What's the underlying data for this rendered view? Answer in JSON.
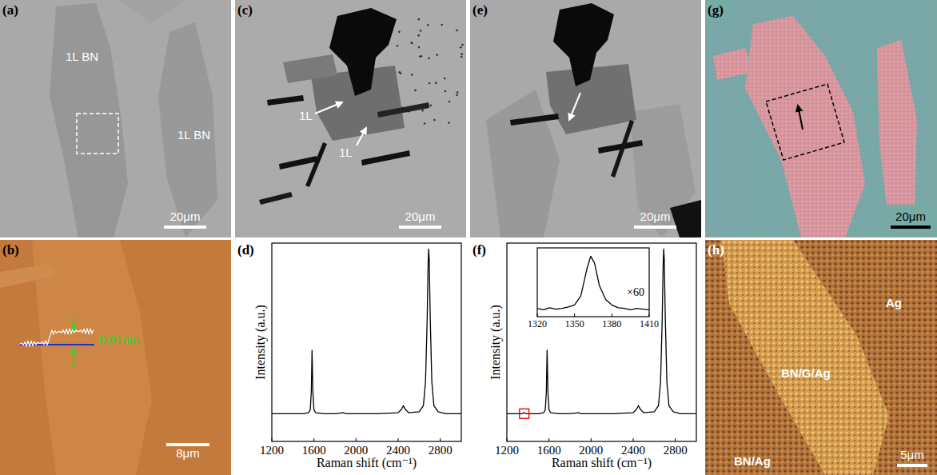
{
  "panel_labels": [
    "(a)",
    "(b)",
    "(c)",
    "(d)",
    "(e)",
    "(f)",
    "(g)",
    "(h)"
  ],
  "images": {
    "a": {
      "labels": [
        "1L BN",
        "1L BN"
      ],
      "scale_bar": "20μm"
    },
    "b": {
      "height": "0.61nm",
      "scale_bar": "8μm"
    },
    "c": {
      "labels": [
        "1L",
        "1L"
      ],
      "scale_bar": "20μm"
    },
    "e": {
      "scale_bar": "20μm"
    },
    "g": {
      "scale_bar": "20μm"
    },
    "h": {
      "labels": [
        "Ag",
        "BN/G/Ag",
        "BN/Ag"
      ],
      "scale_bar": "5μm"
    }
  },
  "chart_data": [
    {
      "type": "line",
      "xlabel": "Raman shift (cm⁻¹)",
      "ylabel": "Intensity (a.u.)",
      "xlim": [
        1200,
        3000
      ],
      "xticks": [
        1200,
        1600,
        2000,
        2400,
        2800
      ],
      "ylim": [
        0,
        1
      ],
      "tick_labels": "x",
      "x": [
        1200,
        1300,
        1400,
        1500,
        1550,
        1565,
        1575,
        1582,
        1590,
        1600,
        1615,
        1700,
        1800,
        1880,
        1900,
        2000,
        2200,
        2400,
        2430,
        2450,
        2470,
        2500,
        2600,
        2640,
        2660,
        2675,
        2685,
        2690,
        2695,
        2705,
        2720,
        2740,
        2780,
        2850,
        2950,
        3000
      ],
      "series": [
        {
          "color": "#000000",
          "values": [
            0.14,
            0.14,
            0.14,
            0.14,
            0.145,
            0.16,
            0.25,
            0.46,
            0.25,
            0.16,
            0.145,
            0.14,
            0.14,
            0.145,
            0.14,
            0.14,
            0.14,
            0.145,
            0.16,
            0.18,
            0.16,
            0.145,
            0.15,
            0.18,
            0.3,
            0.6,
            0.9,
            0.97,
            0.92,
            0.62,
            0.3,
            0.18,
            0.15,
            0.14,
            0.14,
            0.14
          ]
        }
      ]
    },
    {
      "type": "line",
      "xlabel": "Raman shift (cm⁻¹)",
      "ylabel": "Intensity (a.u.)",
      "xlim": [
        1200,
        3000
      ],
      "xticks": [
        1200,
        1600,
        2000,
        2400,
        2800
      ],
      "ylim": [
        0,
        1
      ],
      "tick_labels": "x",
      "x": [
        1200,
        1300,
        1350,
        1365,
        1380,
        1400,
        1500,
        1550,
        1565,
        1575,
        1582,
        1590,
        1600,
        1615,
        1700,
        1800,
        1880,
        1900,
        2000,
        2200,
        2400,
        2430,
        2450,
        2470,
        2500,
        2600,
        2640,
        2660,
        2675,
        2685,
        2690,
        2695,
        2705,
        2720,
        2740,
        2780,
        2850,
        2950,
        3000
      ],
      "series": [
        {
          "color": "#000000",
          "values": [
            0.14,
            0.14,
            0.14,
            0.145,
            0.14,
            0.14,
            0.14,
            0.145,
            0.16,
            0.25,
            0.46,
            0.25,
            0.16,
            0.145,
            0.14,
            0.14,
            0.145,
            0.14,
            0.14,
            0.14,
            0.145,
            0.16,
            0.18,
            0.16,
            0.145,
            0.15,
            0.18,
            0.3,
            0.6,
            0.9,
            0.97,
            0.92,
            0.62,
            0.3,
            0.18,
            0.15,
            0.14,
            0.14,
            0.14
          ]
        }
      ]
    },
    {
      "type": "line",
      "annotation": "×60",
      "xlim": [
        1320,
        1410
      ],
      "xticks": [
        1320,
        1350,
        1380,
        1410
      ],
      "ylim": [
        0,
        1
      ],
      "tick_labels": "x",
      "x": [
        1320,
        1325,
        1330,
        1335,
        1340,
        1345,
        1350,
        1355,
        1360,
        1363,
        1366,
        1370,
        1375,
        1380,
        1385,
        1390,
        1395,
        1400,
        1405,
        1410
      ],
      "series": [
        {
          "color": "#000000",
          "values": [
            0.12,
            0.1,
            0.13,
            0.11,
            0.12,
            0.14,
            0.17,
            0.3,
            0.7,
            0.88,
            0.78,
            0.45,
            0.25,
            0.17,
            0.13,
            0.12,
            0.1,
            0.12,
            0.11,
            0.1
          ]
        }
      ]
    }
  ]
}
